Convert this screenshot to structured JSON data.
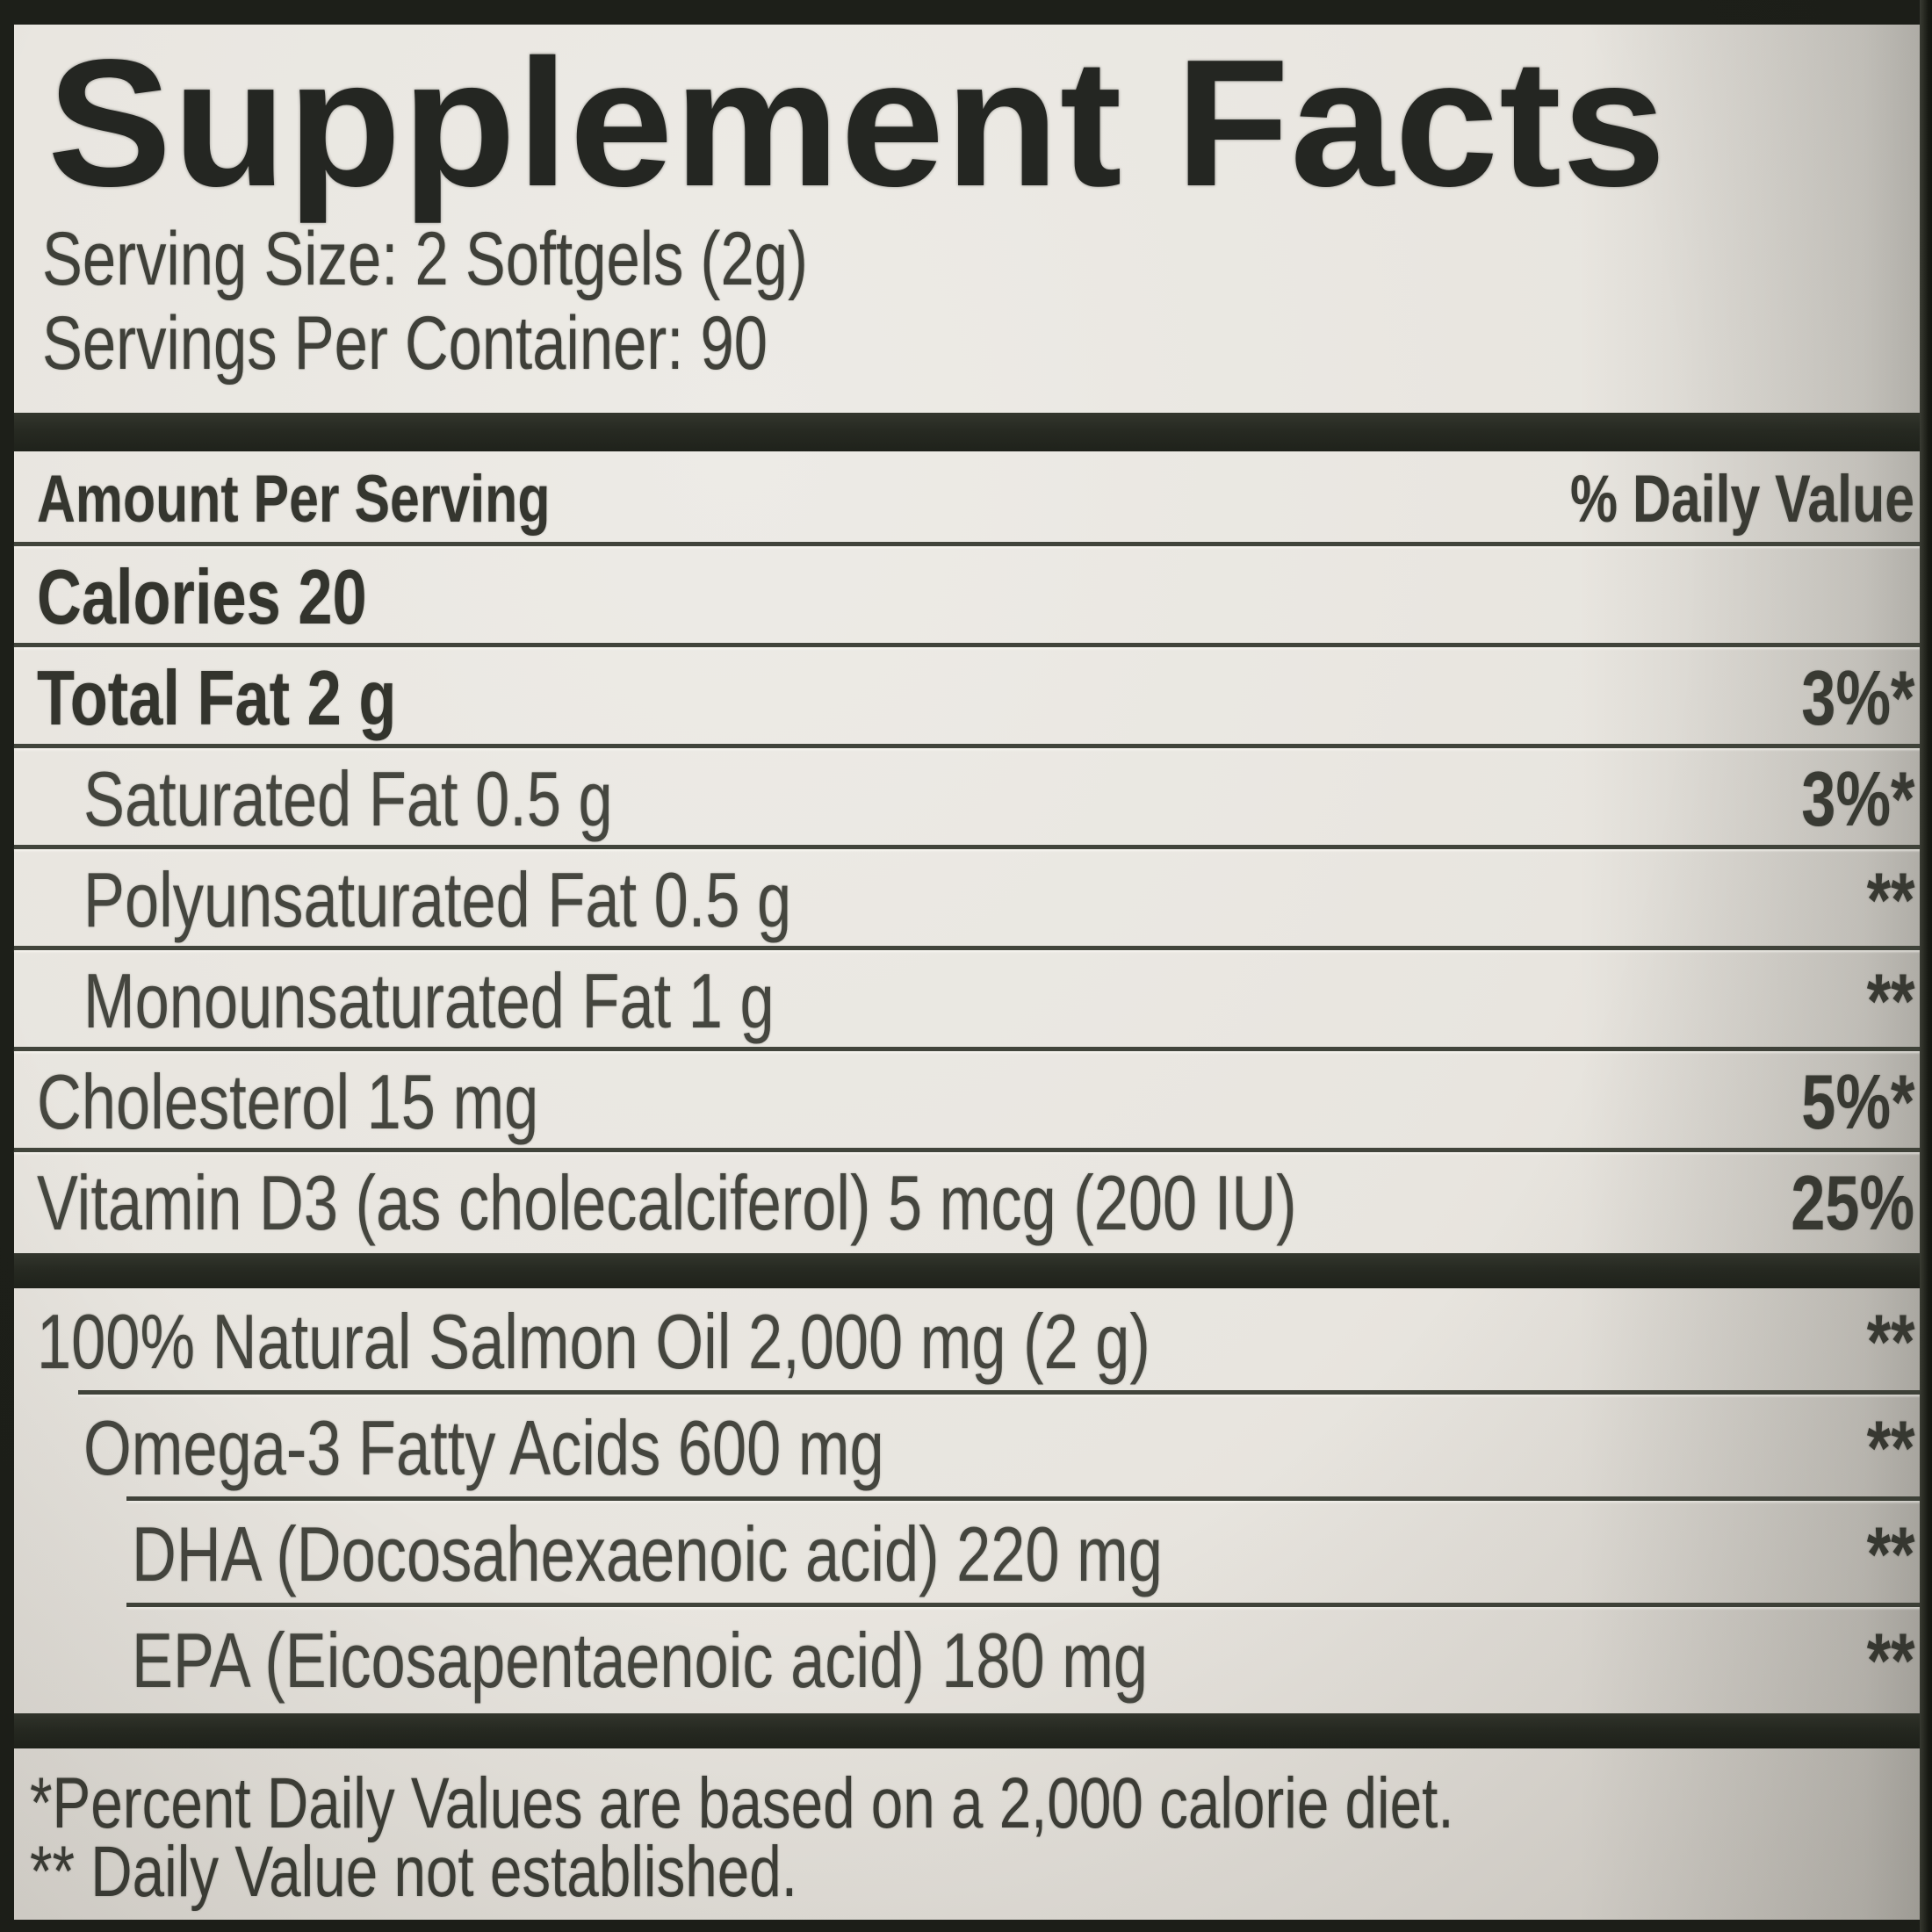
{
  "colors": {
    "paper": "#e8e5df",
    "ink_regular": "#45463f",
    "ink_bold": "#33342d",
    "title_ink": "#242622",
    "rule": "#41443b",
    "section_bar": "#272a22",
    "frame": "#1d1f19"
  },
  "title": "Supplement Facts",
  "serving_info": {
    "serving_size": "Serving Size: 2 Softgels (2g)",
    "servings_per_container": "Servings Per Container: 90"
  },
  "table": {
    "header": {
      "amount_per_serving": "Amount Per Serving",
      "percent_daily_value": "% Daily Value"
    },
    "sections": [
      {
        "rows": [
          {
            "name": "calories",
            "label": "Calories 20",
            "dv": "",
            "indent": 0,
            "bold": true
          },
          {
            "name": "total-fat",
            "label": "Total Fat 2 g",
            "dv": "3%*",
            "indent": 0,
            "bold": true
          },
          {
            "name": "saturated-fat",
            "label": "Saturated Fat 0.5 g",
            "dv": "3%*",
            "indent": 1,
            "bold": false
          },
          {
            "name": "polyunsaturated-fat",
            "label": "Polyunsaturated Fat 0.5 g",
            "dv": "**",
            "indent": 1,
            "bold": false
          },
          {
            "name": "monounsaturated-fat",
            "label": "Monounsaturated Fat 1 g",
            "dv": "**",
            "indent": 1,
            "bold": false
          },
          {
            "name": "cholesterol",
            "label": "Cholesterol 15 mg",
            "dv": "5%*",
            "indent": 0,
            "bold": false
          },
          {
            "name": "vitamin-d3",
            "label": "Vitamin D3 (as cholecalciferol) 5 mcg (200 IU)",
            "dv": "25%",
            "indent": 0,
            "bold": false
          }
        ]
      },
      {
        "rows": [
          {
            "name": "salmon-oil",
            "label": "100% Natural Salmon Oil 2,000 mg (2 g)",
            "dv": "**",
            "indent": 0,
            "bold": false
          },
          {
            "name": "omega-3-fatty-acids",
            "label": "Omega-3 Fatty Acids 600 mg",
            "dv": "**",
            "indent": 1,
            "bold": false
          },
          {
            "name": "dha",
            "label": "DHA (Docosahexaenoic acid) 220 mg",
            "dv": "**",
            "indent": 2,
            "bold": false
          },
          {
            "name": "epa",
            "label": "EPA (Eicosapentaenoic acid) 180 mg",
            "dv": "**",
            "indent": 2,
            "bold": false
          }
        ]
      }
    ]
  },
  "footnotes": [
    "*Percent Daily Values are based on a 2,000 calorie diet.",
    "** Daily Value not established."
  ]
}
